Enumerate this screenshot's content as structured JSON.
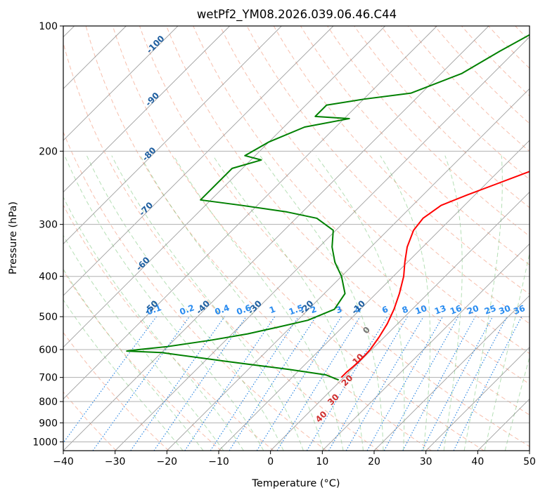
{
  "chart_data": {
    "type": "line",
    "subtype": "skew-t-log-p",
    "title": "wetPf2_YM08.2026.039.06.46.C44",
    "xlabel": "Temperature (°C)",
    "ylabel": "Pressure (hPa)",
    "xlim": [
      -40,
      50
    ],
    "ylim": [
      1050,
      100
    ],
    "y_scale": "log",
    "grid": true,
    "x_ticks": [
      -40,
      -30,
      -20,
      -10,
      0,
      10,
      20,
      30,
      40,
      50
    ],
    "x_tick_labels": [
      "−40",
      "−30",
      "−20",
      "−10",
      "0",
      "10",
      "20",
      "30",
      "40",
      "50"
    ],
    "y_ticks": [
      1000,
      900,
      800,
      700,
      600,
      500,
      400,
      300,
      200,
      100
    ],
    "y_tick_labels": [
      "1000",
      "900",
      "800",
      "700",
      "600",
      "500",
      "400",
      "300",
      "200",
      "100"
    ],
    "series": [
      {
        "color": "#ff0000",
        "points": [
          [
            700,
            -0.5
          ],
          [
            680,
            -0.5
          ],
          [
            660,
            -0.3
          ],
          [
            640,
            -0.2
          ],
          [
            620,
            -0.2
          ],
          [
            600,
            -0.3
          ],
          [
            560,
            -1
          ],
          [
            520,
            -2
          ],
          [
            480,
            -3.5
          ],
          [
            440,
            -5.5
          ],
          [
            400,
            -8
          ],
          [
            370,
            -10.5
          ],
          [
            340,
            -13
          ],
          [
            310,
            -15
          ],
          [
            290,
            -15.5
          ],
          [
            270,
            -14.5
          ],
          [
            255,
            -11.5
          ],
          [
            240,
            -8
          ],
          [
            220,
            -3
          ],
          [
            200,
            2
          ],
          [
            180,
            5
          ],
          [
            160,
            8.5
          ],
          [
            140,
            11.5
          ],
          [
            125,
            14.5
          ],
          [
            110,
            16.5
          ],
          [
            100,
            18
          ]
        ]
      },
      {
        "color": "#008000",
        "points": [
          [
            710,
            -0.5
          ],
          [
            690,
            -4
          ],
          [
            670,
            -12
          ],
          [
            640,
            -26
          ],
          [
            610,
            -40
          ],
          [
            605,
            -47
          ],
          [
            600,
            -45
          ],
          [
            590,
            -40
          ],
          [
            570,
            -33
          ],
          [
            550,
            -27
          ],
          [
            530,
            -22.5
          ],
          [
            510,
            -18
          ],
          [
            480,
            -15
          ],
          [
            440,
            -16
          ],
          [
            400,
            -20
          ],
          [
            370,
            -24
          ],
          [
            340,
            -27.5
          ],
          [
            310,
            -30.5
          ],
          [
            290,
            -36
          ],
          [
            280,
            -43
          ],
          [
            270,
            -53
          ],
          [
            262,
            -62
          ],
          [
            220,
            -62
          ],
          [
            210,
            -58
          ],
          [
            205,
            -62
          ],
          [
            190,
            -60
          ],
          [
            175,
            -56
          ],
          [
            167,
            -49
          ],
          [
            165,
            -56
          ],
          [
            155,
            -56
          ],
          [
            150,
            -50
          ],
          [
            145,
            -42
          ],
          [
            130,
            -36
          ],
          [
            115,
            -33
          ],
          [
            100,
            -29
          ]
        ]
      }
    ],
    "mixing_ratio_labels": [
      "0.1",
      "0.2",
      "0.4",
      "0.6",
      "1",
      "1.5",
      "2",
      "3",
      "4",
      "6",
      "8",
      "10",
      "13",
      "16",
      "20",
      "25",
      "30",
      "36"
    ],
    "dry_adiabat_labels": [
      "-100",
      "-90",
      "-80",
      "-70",
      "-60",
      "-50",
      "-40",
      "-30",
      "-20",
      "-10"
    ],
    "moist_adiabat_labels": [
      "0",
      "10",
      "20",
      "30",
      "40"
    ]
  },
  "colors": {
    "temperature": "#ff0000",
    "dewpoint": "#008000",
    "dry_adiabat": "#f08a6a",
    "moist_adiabat": "#5cb85c",
    "mixing_ratio": "#1f7fe0",
    "isotherm": "#808080",
    "isobar": "#b0b0b0"
  }
}
